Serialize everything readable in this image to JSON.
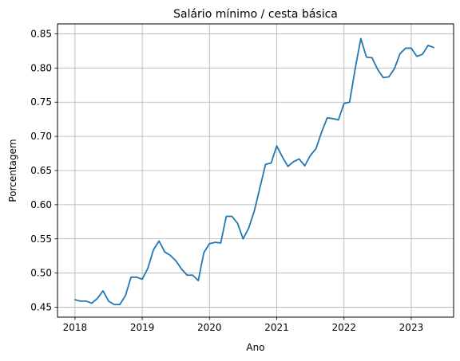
{
  "chart_data": {
    "type": "line",
    "title": "Salário mínimo / cesta básica",
    "xlabel": "Ano",
    "ylabel": "Porcentagem",
    "grid": true,
    "xlim": [
      2017.74,
      2023.63
    ],
    "ylim": [
      0.4355,
      0.8645
    ],
    "x_ticks": [
      2018,
      2019,
      2020,
      2021,
      2022,
      2023
    ],
    "x_tick_labels": [
      "2018",
      "2019",
      "2020",
      "2021",
      "2022",
      "2023"
    ],
    "y_ticks": [
      0.45,
      0.5,
      0.55,
      0.6,
      0.65,
      0.7,
      0.75,
      0.8,
      0.85
    ],
    "y_tick_labels": [
      "0.45",
      "0.50",
      "0.55",
      "0.60",
      "0.65",
      "0.70",
      "0.75",
      "0.80",
      "0.85"
    ],
    "color": "#1f77b4",
    "series": [
      {
        "x": [
          "2018-01",
          "2018-02",
          "2018-03",
          "2018-04",
          "2018-05",
          "2018-06",
          "2018-07",
          "2018-08",
          "2018-09",
          "2018-10",
          "2018-11",
          "2018-12",
          "2019-01",
          "2019-02",
          "2019-03",
          "2019-04",
          "2019-05",
          "2019-06",
          "2019-07",
          "2019-08",
          "2019-09",
          "2019-10",
          "2019-11",
          "2019-12",
          "2020-01",
          "2020-02",
          "2020-03",
          "2020-04",
          "2020-05",
          "2020-06",
          "2020-07",
          "2020-08",
          "2020-09",
          "2020-10",
          "2020-11",
          "2020-12",
          "2021-01",
          "2021-02",
          "2021-03",
          "2021-04",
          "2021-05",
          "2021-06",
          "2021-07",
          "2021-08",
          "2021-09",
          "2021-10",
          "2021-11",
          "2021-12",
          "2022-01",
          "2022-02",
          "2022-03",
          "2022-04",
          "2022-05",
          "2022-06",
          "2022-07",
          "2022-08",
          "2022-09",
          "2022-10",
          "2022-11",
          "2022-12",
          "2023-01",
          "2023-02",
          "2023-03",
          "2023-04",
          "2023-05"
        ],
        "y": [
          0.461,
          0.459,
          0.459,
          0.456,
          0.463,
          0.474,
          0.459,
          0.454,
          0.454,
          0.467,
          0.494,
          0.494,
          0.491,
          0.507,
          0.534,
          0.547,
          0.531,
          0.526,
          0.518,
          0.506,
          0.497,
          0.497,
          0.489,
          0.53,
          0.543,
          0.545,
          0.544,
          0.583,
          0.583,
          0.573,
          0.55,
          0.566,
          0.591,
          0.625,
          0.659,
          0.661,
          0.686,
          0.67,
          0.656,
          0.663,
          0.667,
          0.657,
          0.672,
          0.682,
          0.706,
          0.727,
          0.726,
          0.724,
          0.748,
          0.75,
          0.799,
          0.843,
          0.816,
          0.815,
          0.798,
          0.786,
          0.787,
          0.799,
          0.821,
          0.829,
          0.829,
          0.817,
          0.82,
          0.833,
          0.83
        ]
      }
    ]
  }
}
